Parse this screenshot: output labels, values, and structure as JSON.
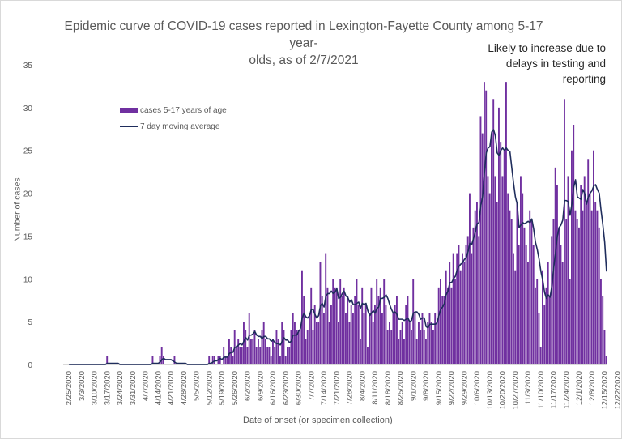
{
  "chart_data": {
    "type": "bar",
    "title": "Epidemic curve of COVID-19 cases reported in Lexington-Fayette County among 5-17 year-olds, as of 2/7/2021",
    "title_lines": [
      "Epidemic curve of COVID-19 cases reported in Lexington-Fayette County among 5-17 year-",
      "olds, as of 2/7/2021"
    ],
    "xlabel": "Date of onset (or specimen collection)",
    "ylabel": "Number of cases",
    "ylim": [
      0,
      35
    ],
    "yticks": [
      0,
      5,
      10,
      15,
      20,
      25,
      30,
      35
    ],
    "grid": false,
    "legend_position": "top-left",
    "start_date": "2/25/2020",
    "xtick_labels": [
      "2/25/2020",
      "3/3/2020",
      "3/10/2020",
      "3/17/2020",
      "3/24/2020",
      "3/31/2020",
      "4/7/2020",
      "4/14/2020",
      "4/21/2020",
      "4/28/2020",
      "5/5/2020",
      "5/12/2020",
      "5/19/2020",
      "5/26/2020",
      "6/2/2020",
      "6/9/2020",
      "6/16/2020",
      "6/23/2020",
      "6/30/2020",
      "7/7/2020",
      "7/14/2020",
      "7/21/2020",
      "7/28/2020",
      "8/4/2020",
      "8/11/2020",
      "8/18/2020",
      "8/25/2020",
      "9/1/2020",
      "9/8/2020",
      "9/15/2020",
      "9/22/2020",
      "9/29/2020",
      "10/6/2020",
      "10/13/2020",
      "10/20/2020",
      "10/27/2020",
      "11/3/2020",
      "11/10/2020",
      "11/17/2020",
      "11/24/2020",
      "12/1/2020",
      "12/8/2020",
      "12/15/2020",
      "12/22/2020",
      "12/29/2020",
      "1/5/2021",
      "1/12/2021",
      "1/19/2021",
      "1/26/2021",
      "2/2/2021"
    ],
    "series": [
      {
        "name": "cases 5-17 years of age",
        "type": "bar",
        "color": "#7030a0",
        "values": [
          0,
          0,
          0,
          0,
          0,
          0,
          0,
          0,
          0,
          0,
          0,
          0,
          0,
          0,
          0,
          0,
          0,
          0,
          0,
          0,
          0,
          1,
          0,
          0,
          0,
          0,
          0,
          0,
          0,
          0,
          0,
          0,
          0,
          0,
          0,
          0,
          0,
          0,
          0,
          0,
          0,
          0,
          0,
          0,
          0,
          0,
          1,
          0,
          0,
          0,
          1,
          2,
          1,
          0,
          0,
          0,
          0,
          0,
          1,
          0,
          0,
          0,
          0,
          0,
          0,
          0,
          0,
          0,
          0,
          0,
          0,
          0,
          0,
          0,
          0,
          0,
          0,
          1,
          0,
          1,
          1,
          0,
          1,
          1,
          0,
          2,
          1,
          1,
          3,
          2,
          1,
          4,
          2,
          3,
          2,
          2,
          5,
          4,
          2,
          6,
          3,
          3,
          4,
          2,
          3,
          2,
          4,
          5,
          3,
          2,
          2,
          1,
          3,
          2,
          4,
          3,
          1,
          5,
          4,
          1,
          2,
          2,
          4,
          6,
          5,
          4,
          4,
          4,
          11,
          8,
          3,
          4,
          6,
          9,
          4,
          7,
          5,
          5,
          12,
          8,
          6,
          13,
          9,
          5,
          7,
          10,
          9,
          9,
          5,
          10,
          8,
          9,
          6,
          8,
          5,
          7,
          6,
          8,
          10,
          7,
          3,
          9,
          6,
          7,
          2,
          6,
          9,
          5,
          7,
          10,
          8,
          9,
          6,
          10,
          7,
          4,
          5,
          4,
          6,
          7,
          8,
          3,
          4,
          5,
          3,
          7,
          8,
          5,
          4,
          10,
          6,
          3,
          5,
          4,
          6,
          4,
          3,
          5,
          6,
          5,
          4,
          6,
          5,
          9,
          10,
          8,
          8,
          11,
          9,
          12,
          9,
          13,
          10,
          13,
          14,
          11,
          13,
          12,
          14,
          15,
          20,
          13,
          16,
          18,
          19,
          15,
          29,
          27,
          33,
          32,
          22,
          20,
          27,
          31,
          22,
          19,
          30,
          26,
          22,
          25,
          33,
          20,
          18,
          17,
          13,
          11,
          19,
          14,
          22,
          20,
          16,
          14,
          12,
          18,
          17,
          14,
          9,
          10,
          6,
          2,
          11,
          7,
          9,
          12,
          8,
          15,
          17,
          23,
          21,
          16,
          14,
          12,
          31,
          17,
          22,
          10,
          25,
          28,
          18,
          17,
          16,
          21,
          18,
          22,
          19,
          24,
          20,
          18,
          25,
          19,
          18,
          16,
          10,
          8,
          4,
          1
        ]
      },
      {
        "name": "7 day moving average",
        "type": "line",
        "color": "#1f2d5c"
      }
    ],
    "shaded_region": {
      "label": "Likely to increase due to delays in testing and reporting",
      "label_lines": [
        "Likely to increase due to",
        "delays in testing and",
        "reporting"
      ],
      "color": "#d9d9d9",
      "start_date": "2/1/2021"
    }
  }
}
